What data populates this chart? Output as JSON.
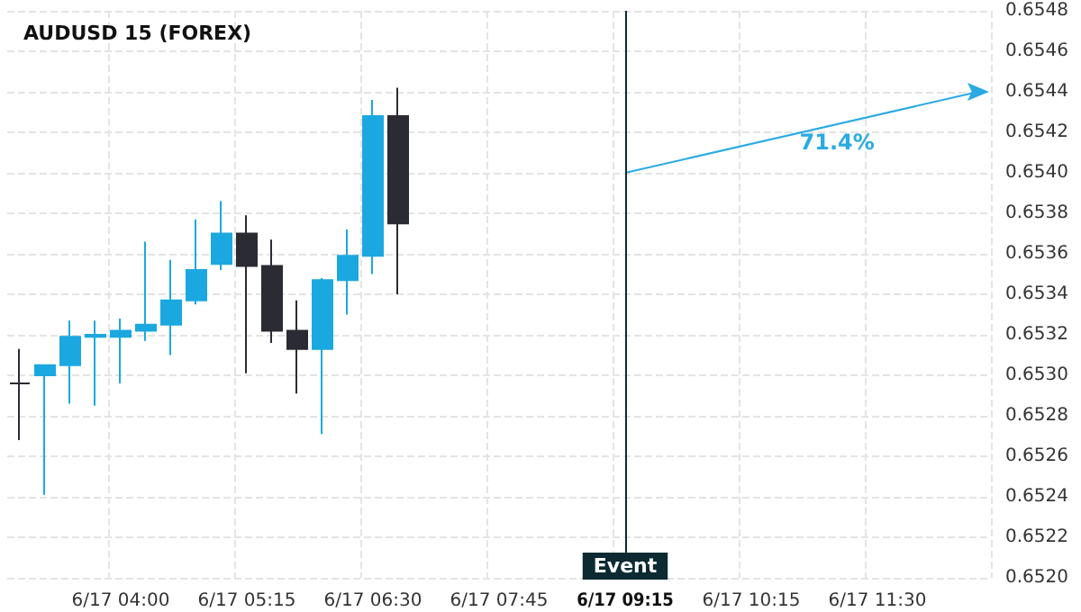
{
  "chart_data": {
    "type": "candlestick",
    "title": "AUDUSD 15 (FOREX)",
    "categories": [
      null,
      null,
      null,
      null,
      "6/17 04:00",
      null,
      null,
      null,
      null,
      "6/17 05:15",
      null,
      null,
      null,
      null,
      "6/17 06:30",
      null,
      null,
      null,
      null,
      "6/17 07:45",
      null,
      null,
      null,
      null,
      "6/17 09:15",
      null,
      null,
      null,
      null,
      "6/17 10:15",
      null,
      null,
      null,
      null,
      "6/17 11:30",
      null,
      null,
      null,
      null
    ],
    "ohlc": [
      [
        0.65296,
        0.65313,
        0.65268,
        0.65296
      ],
      [
        0.653,
        0.65305,
        0.65241,
        0.65305
      ],
      [
        0.65305,
        0.65327,
        0.65286,
        0.65319
      ],
      [
        0.65319,
        0.65327,
        0.65285,
        0.6532
      ],
      [
        0.65319,
        0.65328,
        0.65296,
        0.65322
      ],
      [
        0.65322,
        0.65366,
        0.65317,
        0.65325
      ],
      [
        0.65325,
        0.65357,
        0.6531,
        0.65337
      ],
      [
        0.65337,
        0.65377,
        0.65335,
        0.65352
      ],
      [
        0.65355,
        0.65386,
        0.65352,
        0.6537
      ],
      [
        0.6537,
        0.65379,
        0.65301,
        0.65354
      ],
      [
        0.65354,
        0.65367,
        0.65316,
        0.65322
      ],
      [
        0.65322,
        0.65337,
        0.65291,
        0.65313
      ],
      [
        0.65313,
        0.65348,
        0.65271,
        0.65347
      ],
      [
        0.65347,
        0.65372,
        0.6533,
        0.65359
      ],
      [
        0.65359,
        0.65436,
        0.6535,
        0.65428
      ],
      [
        0.65428,
        0.65442,
        0.6534,
        0.65375
      ],
      null,
      null,
      null,
      null,
      null,
      null,
      null,
      null,
      null,
      null,
      null,
      null,
      null,
      null,
      null,
      null,
      null,
      null,
      null,
      null,
      null,
      null,
      null
    ],
    "colors": [
      "#2b2b33",
      "#1ba8e0",
      "#1ba8e0",
      "#1ba8e0",
      "#1ba8e0",
      "#1ba8e0",
      "#1ba8e0",
      "#1ba8e0",
      "#1ba8e0",
      "#2b2b33",
      "#2b2b33",
      "#2b2b33",
      "#1ba8e0",
      "#1ba8e0",
      "#1ba8e0",
      "#2b2b33",
      null,
      null,
      null,
      null,
      null,
      null,
      null,
      null,
      null,
      null,
      null,
      null,
      null,
      null,
      null,
      null,
      null,
      null,
      null,
      null,
      null,
      null,
      null
    ],
    "series": [
      {
        "type": "line",
        "color": "#29abe2",
        "values": [
          null,
          null,
          null,
          null,
          null,
          null,
          null,
          null,
          null,
          null,
          null,
          null,
          null,
          null,
          null,
          null,
          null,
          null,
          null,
          null,
          null,
          null,
          null,
          null,
          0.654,
          null,
          null,
          null,
          null,
          null,
          null,
          null,
          null,
          null,
          null,
          null,
          null,
          null,
          0.6544
        ]
      }
    ],
    "ylim": [
      0.652,
      0.6548
    ],
    "yticks": [
      {
        "value": 0.652,
        "label": "0.6520"
      },
      0.6522,
      0.6524,
      0.6526,
      0.6528,
      {
        "value": 0.653,
        "label": "0.6530"
      },
      0.6532,
      0.6534,
      0.6536,
      0.6538,
      {
        "value": 0.654,
        "label": "0.6540"
      },
      0.6542,
      0.6544,
      0.6546,
      0.6548
    ],
    "grid": true,
    "ref_lines": [
      {
        "axis": "x",
        "value": "6/17 09:15",
        "label": "Event",
        "color": "#0d2a33"
      }
    ],
    "annotations": [
      "71.4%"
    ]
  }
}
